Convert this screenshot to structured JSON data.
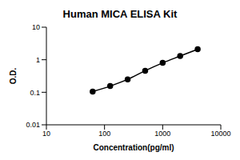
{
  "chart_data": {
    "type": "line",
    "title": "Human MICA ELISA Kit",
    "xlabel": "Concentration(pg/ml)",
    "ylabel": "O.D.",
    "x": [
      62.5,
      125,
      250,
      500,
      1000,
      2000,
      4000
    ],
    "values": [
      0.105,
      0.155,
      0.25,
      0.46,
      0.8,
      1.3,
      2.1
    ],
    "color": "#000000",
    "marker": "circle",
    "log": true,
    "xlim": [
      10,
      10000
    ],
    "ylim": [
      0.01,
      10
    ],
    "xticks": [
      10,
      100,
      1000,
      10000
    ],
    "yticks": [
      0.01,
      0.1,
      1,
      10
    ],
    "grid": false
  }
}
